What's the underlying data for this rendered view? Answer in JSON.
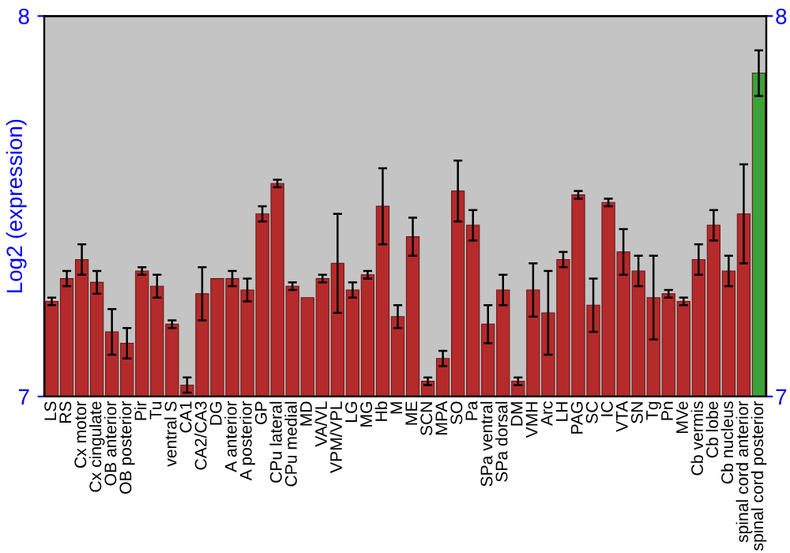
{
  "chart_data": {
    "type": "bar",
    "ylabel": "Log2 (expression)",
    "categories": [
      "LS",
      "RS",
      "Cx motor",
      "Cx cingulate",
      "OB anterior",
      "OB posterior",
      "Pir",
      "Tu",
      "ventral S",
      "CA1",
      "CA2/CA3",
      "DG",
      "A anterior",
      "A posterior",
      "GP",
      "CPu lateral",
      "CPu medial",
      "MD",
      "VA/VL",
      "VPM/VPL",
      "LG",
      "MG",
      "Hb",
      "M",
      "ME",
      "SCN",
      "MPA",
      "SO",
      "Pa",
      "SPa ventral",
      "SPa dorsal",
      "DM",
      "VMH",
      "Arc",
      "LH",
      "PAG",
      "SC",
      "IC",
      "VTA",
      "SN",
      "Tg",
      "Pn",
      "MVe",
      "Cb vermis",
      "Cb lobe",
      "Cb nucleus",
      "spinal cord anterior",
      "spinal cord posterior"
    ],
    "values": [
      7.25,
      7.31,
      7.36,
      7.3,
      7.17,
      7.14,
      7.33,
      7.29,
      7.19,
      7.03,
      7.27,
      7.31,
      7.31,
      7.28,
      7.48,
      7.56,
      7.29,
      7.26,
      7.31,
      7.35,
      7.28,
      7.32,
      7.5,
      7.21,
      7.42,
      7.04,
      7.1,
      7.54,
      7.45,
      7.19,
      7.28,
      7.04,
      7.28,
      7.22,
      7.36,
      7.53,
      7.24,
      7.51,
      7.38,
      7.33,
      7.26,
      7.27,
      7.25,
      7.36,
      7.45,
      7.33,
      7.48,
      7.85
    ],
    "errors": [
      0.01,
      0.02,
      0.04,
      0.03,
      0.06,
      0.04,
      0.01,
      0.03,
      0.01,
      0.02,
      0.07,
      null,
      0.02,
      0.03,
      0.02,
      0.01,
      0.01,
      null,
      0.01,
      0.13,
      0.02,
      0.01,
      0.1,
      0.03,
      0.05,
      0.01,
      0.02,
      0.08,
      0.04,
      0.05,
      0.04,
      0.01,
      0.07,
      0.11,
      0.02,
      0.01,
      0.07,
      0.01,
      0.06,
      0.04,
      0.11,
      0.01,
      0.01,
      0.04,
      0.04,
      0.04,
      0.13,
      0.06
    ],
    "colors": [
      "#b52a2a",
      "#b52a2a",
      "#b52a2a",
      "#b52a2a",
      "#b52a2a",
      "#b52a2a",
      "#b52a2a",
      "#b52a2a",
      "#b52a2a",
      "#b52a2a",
      "#b52a2a",
      "#b52a2a",
      "#b52a2a",
      "#b52a2a",
      "#b52a2a",
      "#b52a2a",
      "#b52a2a",
      "#b52a2a",
      "#b52a2a",
      "#b52a2a",
      "#b52a2a",
      "#b52a2a",
      "#b52a2a",
      "#b52a2a",
      "#b52a2a",
      "#b52a2a",
      "#b52a2a",
      "#b52a2a",
      "#b52a2a",
      "#b52a2a",
      "#b52a2a",
      "#b52a2a",
      "#b52a2a",
      "#b52a2a",
      "#b52a2a",
      "#b52a2a",
      "#b52a2a",
      "#b52a2a",
      "#b52a2a",
      "#b52a2a",
      "#b52a2a",
      "#b52a2a",
      "#b52a2a",
      "#b52a2a",
      "#b52a2a",
      "#b52a2a",
      "#b52a2a",
      "#3aa33a"
    ],
    "ylim": [
      7,
      8
    ],
    "yticks": [
      7,
      8
    ],
    "y2lim": [
      7,
      8
    ],
    "y2ticks": [
      7,
      8
    ],
    "grid": false,
    "legend": false
  }
}
